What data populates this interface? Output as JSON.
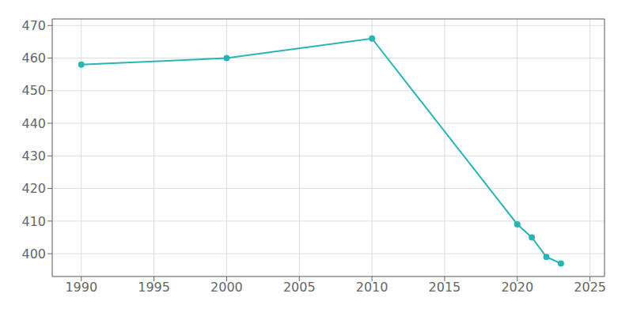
{
  "chart_data": {
    "type": "line",
    "x": [
      1990,
      2000,
      2010,
      2020,
      2021,
      2022,
      2023
    ],
    "values": [
      458,
      460,
      466,
      409,
      405,
      399,
      397
    ],
    "color": "#2ab5b5",
    "marker": "circle",
    "xlim": [
      1988,
      2026
    ],
    "ylim": [
      393,
      472
    ],
    "xticks": [
      1990,
      1995,
      2000,
      2005,
      2010,
      2015,
      2020,
      2025
    ],
    "yticks": [
      400,
      410,
      420,
      430,
      440,
      450,
      460,
      470
    ],
    "grid": true
  }
}
